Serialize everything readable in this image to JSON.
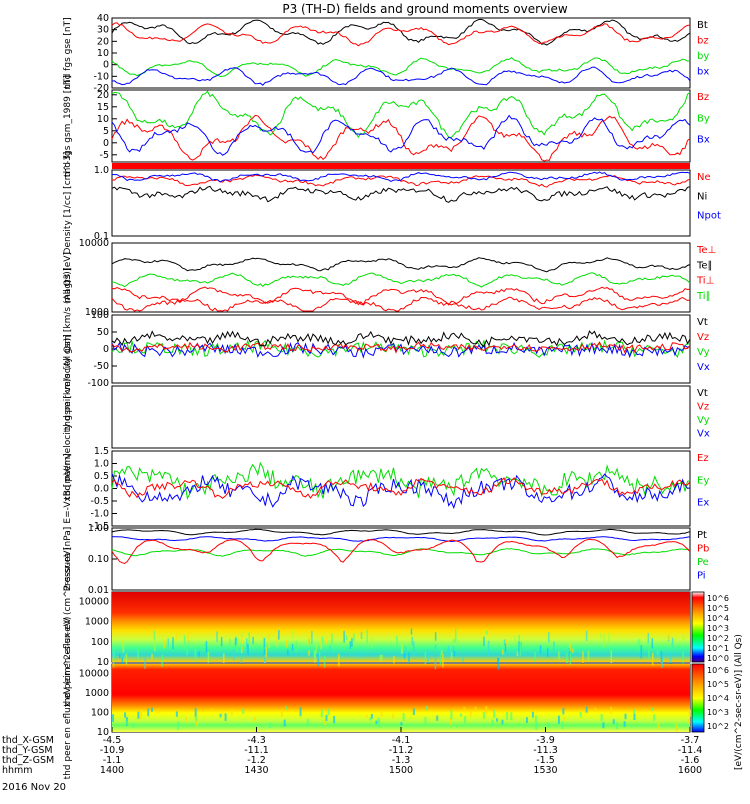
{
  "title": "P3 (TH-D) fields and ground moments overview",
  "date": "2016 Nov 20",
  "time_axis": {
    "rows": [
      {
        "label": "thd_X-GSM",
        "values": [
          "-4.5",
          "-4.3",
          "-4.1",
          "-3.9",
          "-3.7"
        ]
      },
      {
        "label": "thd_Y-GSM",
        "values": [
          "-10.9",
          "-11.1",
          "-11.2",
          "-11.3",
          "-11.4"
        ]
      },
      {
        "label": "thd_Z-GSM",
        "values": [
          "-1.1",
          "-1.2",
          "-1.3",
          "-1.5",
          "-1.6"
        ]
      },
      {
        "label": "hhmm",
        "values": [
          "1400",
          "1430",
          "1500",
          "1530",
          "1600"
        ]
      }
    ]
  },
  "colorbar": {
    "label": "[eV/(cm^2-sec-sr-eV)] (All Qs)",
    "ticks_top": [
      "10^6",
      "10^5",
      "10^4",
      "10^3",
      "10^2",
      "10^1",
      "10^0"
    ],
    "ticks_bottom": [
      "10^6",
      "10^5",
      "10^4",
      "10^3",
      "10^2"
    ]
  },
  "colors": {
    "black": "#000000",
    "red": "#ff0000",
    "green": "#00dd00",
    "blue": "#0000ff"
  },
  "chart_data": [
    {
      "type": "line",
      "ylabel": "thd fgs gse [nT]",
      "yticks": [
        "40",
        "30",
        "20",
        "10",
        "0",
        "-10",
        "-20"
      ],
      "ylim": [
        -20,
        40
      ],
      "legend": [
        {
          "name": "Bt",
          "color": "#000000"
        },
        {
          "name": "bz",
          "color": "#ff0000"
        },
        {
          "name": "by",
          "color": "#00dd00"
        },
        {
          "name": "bx",
          "color": "#0000ff"
        }
      ],
      "series": [
        {
          "name": "Bt",
          "base": 28,
          "amp": 7,
          "noise": 1
        },
        {
          "name": "bz",
          "base": 26,
          "amp": 6,
          "noise": 1
        },
        {
          "name": "by",
          "base": -2,
          "amp": 5,
          "noise": 1
        },
        {
          "name": "bx",
          "base": -10,
          "amp": 5,
          "noise": 1
        }
      ]
    },
    {
      "type": "line",
      "ylabel": "thd fgs gsm_1989 [nT]",
      "yticks": [
        "20",
        "15",
        "10",
        "5",
        "0",
        "-5"
      ],
      "ylim": [
        -8,
        22
      ],
      "legend": [
        {
          "name": "Bz",
          "color": "#ff0000"
        },
        {
          "name": "By",
          "color": "#00dd00"
        },
        {
          "name": "Bx",
          "color": "#0000ff"
        }
      ],
      "series": [
        {
          "name": "Bz",
          "base": 2,
          "amp": 6,
          "noise": 1
        },
        {
          "name": "By",
          "base": 12,
          "amp": 6,
          "noise": 1
        },
        {
          "name": "Bx",
          "base": 3,
          "amp": 5,
          "noise": 1
        }
      ]
    },
    {
      "type": "line",
      "ylabel": "Density [1/cc] [cm^-3]",
      "yticks": [
        "1.0",
        "0.1"
      ],
      "ylim": [
        0.1,
        1.0
      ],
      "scale": "log",
      "legend": [
        {
          "name": "Ne",
          "color": "#ff0000"
        },
        {
          "name": "Ni",
          "color": "#000000"
        },
        {
          "name": "Npot",
          "color": "#0000ff"
        }
      ],
      "series": [
        {
          "name": "Ne",
          "base": 0.7,
          "amp": 0.08,
          "noise": 0.03
        },
        {
          "name": "Ni",
          "base": 0.45,
          "amp": 0.06,
          "noise": 0.04
        },
        {
          "name": "Npot",
          "base": 0.8,
          "amp": 0.08,
          "noise": 0.03
        }
      ]
    },
    {
      "type": "line",
      "ylabel": "magt3 [eV]",
      "yticks": [
        "10000",
        "1000"
      ],
      "ylim": [
        1000,
        10000
      ],
      "scale": "log",
      "legend": [
        {
          "name": "Te⊥",
          "color": "#ff0000"
        },
        {
          "name": "Te∥",
          "color": "#000000"
        },
        {
          "name": "Ti⊥",
          "color": "#ff0000"
        },
        {
          "name": "Ti∥",
          "color": "#00dd00"
        }
      ],
      "series": [
        {
          "name": "Te∥",
          "base": 5000,
          "amp": 700,
          "noise": 150
        },
        {
          "name": "Te⊥",
          "base": 1800,
          "amp": 300,
          "noise": 100
        },
        {
          "name": "Ti⊥",
          "base": 1300,
          "amp": 200,
          "noise": 80
        },
        {
          "name": "Ti∥",
          "base": 3000,
          "amp": 400,
          "noise": 120
        }
      ]
    },
    {
      "type": "line",
      "ylabel": "thd peir velocity gsm [km/s (All Qs)]",
      "yticks": [
        "100",
        "50",
        "0",
        "-50",
        "-100"
      ],
      "ylim": [
        -100,
        100
      ],
      "legend": [
        {
          "name": "Vt",
          "color": "#000000"
        },
        {
          "name": "Vz",
          "color": "#ff0000"
        },
        {
          "name": "Vy",
          "color": "#00dd00"
        },
        {
          "name": "Vx",
          "color": "#0000ff"
        }
      ],
      "series": [
        {
          "name": "Vy",
          "base": 0,
          "amp": 6,
          "noise": 18
        },
        {
          "name": "Vx",
          "base": -3,
          "amp": 5,
          "noise": 16
        },
        {
          "name": "Vz",
          "base": 5,
          "amp": 4,
          "noise": 10
        },
        {
          "name": "Vt",
          "base": 30,
          "amp": 8,
          "noise": 12
        }
      ]
    },
    {
      "type": "line",
      "ylabel": "thd peer velocity gsm [km/s (All Qs)]",
      "yticks": [],
      "ylim": [
        -100,
        100
      ],
      "legend": [
        {
          "name": "Vt",
          "color": "#000000"
        },
        {
          "name": "Vz",
          "color": "#ff0000"
        },
        {
          "name": "Vy",
          "color": "#00dd00"
        },
        {
          "name": "Vx",
          "color": "#0000ff"
        }
      ],
      "series": []
    },
    {
      "type": "line",
      "ylabel": "E=-VxB [mV/m]",
      "yticks": [
        "1.5",
        "1.0",
        "0.5",
        "0.0",
        "-0.5",
        "-1.0",
        "-1.5"
      ],
      "ylim": [
        -1.5,
        1.5
      ],
      "legend": [
        {
          "name": "Ez",
          "color": "#ff0000"
        },
        {
          "name": "Ey",
          "color": "#00dd00"
        },
        {
          "name": "Ex",
          "color": "#0000ff"
        }
      ],
      "series": [
        {
          "name": "Ey",
          "base": 0.3,
          "amp": 0.3,
          "noise": 0.35
        },
        {
          "name": "Ex",
          "base": -0.1,
          "amp": 0.3,
          "noise": 0.3
        },
        {
          "name": "Ez",
          "base": 0.05,
          "amp": 0.2,
          "noise": 0.15
        }
      ]
    },
    {
      "type": "line",
      "ylabel": "Pressure [nPa]",
      "yticks": [
        "1.00",
        "0.10",
        "0.01"
      ],
      "ylim": [
        0.01,
        1.0
      ],
      "scale": "log",
      "legend": [
        {
          "name": "Pt",
          "color": "#000000"
        },
        {
          "name": "Pb",
          "color": "#ff0000"
        },
        {
          "name": "Pe",
          "color": "#00dd00"
        },
        {
          "name": "Pi",
          "color": "#0000ff"
        }
      ],
      "series": [
        {
          "name": "Pt",
          "base": 0.75,
          "amp": 0.1,
          "noise": 0.01
        },
        {
          "name": "Pi",
          "base": 0.45,
          "amp": 0.05,
          "noise": 0.01
        },
        {
          "name": "Pe",
          "base": 0.17,
          "amp": 0.03,
          "noise": 0.005
        },
        {
          "name": "Pb",
          "base": 0.25,
          "amp": 0.12,
          "noise": 0.01
        }
      ]
    },
    {
      "type": "heatmap",
      "ylabel": "thd peir en eflux eV (cm^2-s-sr-eV)",
      "yticks": [
        "10000",
        "1000",
        "100",
        "10"
      ],
      "ylim": [
        10,
        30000
      ],
      "scale": "log"
    },
    {
      "type": "heatmap",
      "ylabel": "thd peer en eflux eV (cm^2-s-sr-eV)",
      "yticks": [
        "10000",
        "1000",
        "100",
        "10"
      ],
      "ylim": [
        10,
        30000
      ],
      "scale": "log"
    }
  ]
}
